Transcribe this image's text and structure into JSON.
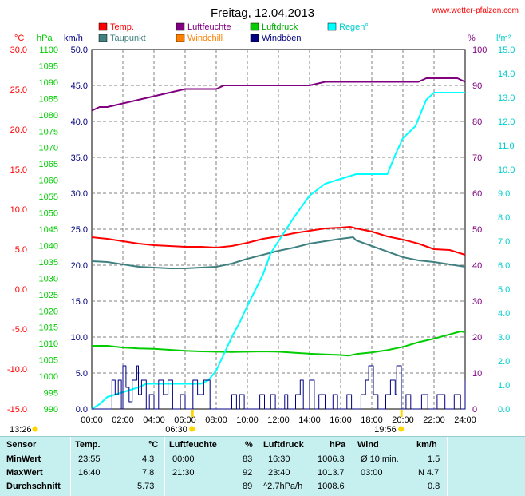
{
  "header": {
    "title": "Freitag, 12.04.2013",
    "brand": "www.wetter-pfalzen.com"
  },
  "axes": {
    "temp": {
      "unit": "°C",
      "ticks": [
        "30.0",
        "25.0",
        "20.0",
        "15.0",
        "10.0",
        "5.0",
        "0.0",
        "-5.0",
        "-10.0",
        "-15.0"
      ],
      "color": "#ff0000"
    },
    "press": {
      "unit": "hPa",
      "ticks": [
        "1100",
        "1095",
        "1090",
        "1085",
        "1080",
        "1075",
        "1070",
        "1065",
        "1060",
        "1055",
        "1050",
        "1045",
        "1040",
        "1035",
        "1030",
        "1025",
        "1020",
        "1015",
        "1010",
        "1005",
        "1000",
        "995",
        "990"
      ],
      "color": "#00cc00"
    },
    "wind": {
      "unit": "km/h",
      "ticks": [
        "50.0",
        "45.0",
        "40.0",
        "35.0",
        "30.0",
        "25.0",
        "20.0",
        "15.0",
        "10.0",
        "5.0",
        "0.0"
      ],
      "color": "#000080"
    },
    "hum": {
      "unit": "%",
      "ticks": [
        "100",
        "90",
        "80",
        "70",
        "60",
        "50",
        "40",
        "30",
        "20",
        "10",
        "0"
      ],
      "color": "#800080"
    },
    "rain": {
      "unit": "l/m²",
      "ticks": [
        "15.0",
        "14.0",
        "13.0",
        "12.0",
        "11.0",
        "10.0",
        "9.0",
        "8.0",
        "7.0",
        "6.0",
        "5.0",
        "4.0",
        "3.0",
        "2.0",
        "1.0",
        "0.0"
      ],
      "color": "#00cccc"
    },
    "x_ticks": [
      "00:00",
      "02:00",
      "04:00",
      "06:00",
      "08:00",
      "10:00",
      "12:00",
      "14:00",
      "16:00",
      "18:00",
      "20:00",
      "22:00",
      "24:00"
    ]
  },
  "legend": [
    {
      "label": "Temp.",
      "color": "#ff0000",
      "text_color": "#ff0000"
    },
    {
      "label": "Luftfeuchte",
      "color": "#800080",
      "text_color": "#800080"
    },
    {
      "label": "Luftdruck",
      "color": "#00cc00",
      "text_color": "#00aa00"
    },
    {
      "label": "Regen°",
      "color": "#00ffff",
      "text_color": "#00cccc"
    },
    {
      "label": "Taupunkt",
      "color": "#408080",
      "text_color": "#408080"
    },
    {
      "label": "Windchill",
      "color": "#ff8000",
      "text_color": "#ff8000"
    },
    {
      "label": "Windböen",
      "color": "#000080",
      "text_color": "#000080"
    }
  ],
  "sun": {
    "sunrise_time": "06:30",
    "sunset_time": "19:56",
    "moon_time": "13:26"
  },
  "chart_data": {
    "type": "line",
    "x_unit": "hour",
    "x_range": [
      0,
      24
    ],
    "series": [
      {
        "name": "Temp.",
        "axis": "temp",
        "color": "#ff0000",
        "points": [
          [
            0,
            6.5
          ],
          [
            1,
            6.3
          ],
          [
            2,
            6.0
          ],
          [
            3,
            5.7
          ],
          [
            4,
            5.5
          ],
          [
            5,
            5.4
          ],
          [
            6,
            5.3
          ],
          [
            7,
            5.3
          ],
          [
            8,
            5.2
          ],
          [
            9,
            5.4
          ],
          [
            10,
            5.8
          ],
          [
            11,
            6.3
          ],
          [
            12,
            6.6
          ],
          [
            13,
            7.0
          ],
          [
            14,
            7.3
          ],
          [
            15,
            7.6
          ],
          [
            16,
            7.7
          ],
          [
            16.6,
            7.8
          ],
          [
            17,
            7.6
          ],
          [
            18,
            7.2
          ],
          [
            19,
            6.6
          ],
          [
            20,
            6.2
          ],
          [
            21,
            5.7
          ],
          [
            22,
            5.0
          ],
          [
            23,
            4.9
          ],
          [
            24,
            4.3
          ]
        ]
      },
      {
        "name": "Taupunkt",
        "axis": "temp",
        "color": "#408080",
        "points": [
          [
            0,
            3.5
          ],
          [
            1,
            3.4
          ],
          [
            2,
            3.1
          ],
          [
            3,
            2.8
          ],
          [
            4,
            2.7
          ],
          [
            5,
            2.6
          ],
          [
            6,
            2.6
          ],
          [
            7,
            2.7
          ],
          [
            8,
            2.8
          ],
          [
            9,
            3.2
          ],
          [
            10,
            3.8
          ],
          [
            11,
            4.3
          ],
          [
            12,
            4.8
          ],
          [
            13,
            5.2
          ],
          [
            14,
            5.7
          ],
          [
            15,
            6.0
          ],
          [
            16,
            6.3
          ],
          [
            16.8,
            6.5
          ],
          [
            17,
            6.1
          ],
          [
            18,
            5.4
          ],
          [
            19,
            4.7
          ],
          [
            20,
            4.0
          ],
          [
            21,
            3.6
          ],
          [
            22,
            3.4
          ],
          [
            23,
            3.1
          ],
          [
            24,
            2.8
          ]
        ]
      },
      {
        "name": "Luftfeuchte",
        "axis": "hum",
        "color": "#800080",
        "points": [
          [
            0,
            83
          ],
          [
            0.5,
            84
          ],
          [
            1,
            84
          ],
          [
            2,
            85
          ],
          [
            3,
            86
          ],
          [
            4,
            87
          ],
          [
            5,
            88
          ],
          [
            6,
            89
          ],
          [
            8,
            89
          ],
          [
            8.5,
            90
          ],
          [
            12,
            90
          ],
          [
            14,
            90
          ],
          [
            15,
            91
          ],
          [
            16,
            91
          ],
          [
            17,
            91
          ],
          [
            18,
            91
          ],
          [
            19,
            91
          ],
          [
            20,
            91
          ],
          [
            21,
            91
          ],
          [
            21.5,
            92
          ],
          [
            23.5,
            92
          ],
          [
            24,
            91
          ]
        ]
      },
      {
        "name": "Luftdruck",
        "axis": "press",
        "color": "#00cc00",
        "points": [
          [
            0,
            1009.3
          ],
          [
            1,
            1009.3
          ],
          [
            2,
            1008.8
          ],
          [
            3,
            1008.5
          ],
          [
            4,
            1008.4
          ],
          [
            5,
            1008.1
          ],
          [
            6,
            1007.8
          ],
          [
            7,
            1007.6
          ],
          [
            8,
            1007.5
          ],
          [
            9,
            1007.4
          ],
          [
            10,
            1007.5
          ],
          [
            11,
            1007.6
          ],
          [
            12,
            1007.5
          ],
          [
            13,
            1007.2
          ],
          [
            14,
            1006.9
          ],
          [
            15,
            1006.7
          ],
          [
            16,
            1006.5
          ],
          [
            16.5,
            1006.3
          ],
          [
            17,
            1006.8
          ],
          [
            18,
            1007.3
          ],
          [
            19,
            1008.0
          ],
          [
            20,
            1009.0
          ],
          [
            21,
            1010.4
          ],
          [
            22,
            1011.5
          ],
          [
            23,
            1012.8
          ],
          [
            23.7,
            1013.7
          ],
          [
            24,
            1013.5
          ]
        ]
      },
      {
        "name": "Regen°",
        "axis": "rain",
        "color": "#00ffff",
        "points": [
          [
            0,
            0
          ],
          [
            0.5,
            0.2
          ],
          [
            1,
            0.5
          ],
          [
            2,
            0.7
          ],
          [
            3,
            0.9
          ],
          [
            3.5,
            1.05
          ],
          [
            7,
            1.05
          ],
          [
            7.5,
            1.2
          ],
          [
            8,
            1.6
          ],
          [
            8.5,
            2.3
          ],
          [
            9,
            3.0
          ],
          [
            9.5,
            3.6
          ],
          [
            10,
            4.3
          ],
          [
            11,
            5.6
          ],
          [
            11.5,
            6.5
          ],
          [
            12,
            7.0
          ],
          [
            13,
            8.0
          ],
          [
            14,
            8.9
          ],
          [
            15,
            9.4
          ],
          [
            16,
            9.6
          ],
          [
            17,
            9.8
          ],
          [
            18,
            9.8
          ],
          [
            19,
            9.8
          ],
          [
            19.5,
            10.6
          ],
          [
            20,
            11.3
          ],
          [
            20.8,
            11.8
          ],
          [
            21.5,
            12.9
          ],
          [
            22,
            13.2
          ],
          [
            24,
            13.2
          ]
        ]
      },
      {
        "name": "Windböen",
        "axis": "wind",
        "color": "#000080",
        "points": [
          [
            0,
            0
          ],
          [
            1.2,
            0
          ],
          [
            1.3,
            4
          ],
          [
            1.5,
            2
          ],
          [
            1.7,
            4
          ],
          [
            1.9,
            0
          ],
          [
            2.0,
            6
          ],
          [
            2.2,
            3
          ],
          [
            2.4,
            1
          ],
          [
            2.6,
            4
          ],
          [
            2.9,
            6
          ],
          [
            3.0,
            2
          ],
          [
            3.2,
            4
          ],
          [
            3.5,
            0
          ],
          [
            3.7,
            2
          ],
          [
            4.0,
            0
          ],
          [
            4.3,
            4
          ],
          [
            4.6,
            2
          ],
          [
            4.9,
            4
          ],
          [
            5.2,
            0
          ],
          [
            5.7,
            2
          ],
          [
            6.0,
            0
          ],
          [
            6.5,
            4
          ],
          [
            6.8,
            2
          ],
          [
            7.2,
            4
          ],
          [
            7.6,
            0
          ],
          [
            8.1,
            0
          ],
          [
            8.6,
            0
          ],
          [
            9.0,
            2
          ],
          [
            9.3,
            0
          ],
          [
            9.5,
            2
          ],
          [
            9.8,
            0
          ],
          [
            10.3,
            0
          ],
          [
            10.8,
            2
          ],
          [
            11.1,
            0
          ],
          [
            11.5,
            2
          ],
          [
            11.8,
            0
          ],
          [
            12.4,
            2
          ],
          [
            12.6,
            0
          ],
          [
            13.1,
            2
          ],
          [
            13.4,
            4
          ],
          [
            13.6,
            0
          ],
          [
            14.0,
            4
          ],
          [
            14.3,
            0
          ],
          [
            14.6,
            2
          ],
          [
            15.0,
            0
          ],
          [
            15.5,
            2
          ],
          [
            15.8,
            0
          ],
          [
            16.4,
            2
          ],
          [
            16.7,
            0
          ],
          [
            17.3,
            2
          ],
          [
            17.6,
            4
          ],
          [
            17.8,
            6
          ],
          [
            18.1,
            2
          ],
          [
            18.4,
            0
          ],
          [
            18.9,
            2
          ],
          [
            19.2,
            4
          ],
          [
            19.5,
            2
          ],
          [
            19.6,
            6
          ],
          [
            19.9,
            0
          ],
          [
            20.2,
            2
          ],
          [
            20.5,
            0
          ],
          [
            21.2,
            2
          ],
          [
            21.6,
            0
          ],
          [
            22.2,
            2
          ],
          [
            22.7,
            0
          ],
          [
            23.3,
            2
          ],
          [
            23.7,
            0
          ],
          [
            24.0,
            4
          ]
        ]
      }
    ]
  },
  "table": {
    "headers": [
      "Sensor",
      "Temp.",
      "°C",
      "Luftfeuchte",
      "%",
      "Luftdruck",
      "hPa",
      "Wind",
      "km/h"
    ],
    "rows": [
      {
        "label": "MinWert",
        "t_time": "23:55",
        "t_val": "4.3",
        "h_time": "00:00",
        "h_val": "83",
        "p_time": "16:30",
        "p_val": "1006.3",
        "w_time": "Ø 10 min.",
        "w_val": "1.5"
      },
      {
        "label": "MaxWert",
        "t_time": "16:40",
        "t_val": "7.8",
        "h_time": "21:30",
        "h_val": "92",
        "p_time": "23:40",
        "p_val": "1013.7",
        "w_time": "03:00",
        "w_val": "N 4.7"
      },
      {
        "label": "Durchschnitt",
        "t_time": "",
        "t_val": "5.73",
        "h_time": "",
        "h_val": "89",
        "p_time": "^2.7hPa/h",
        "p_val": "1008.6",
        "w_time": "",
        "w_val": "0.8"
      }
    ]
  }
}
